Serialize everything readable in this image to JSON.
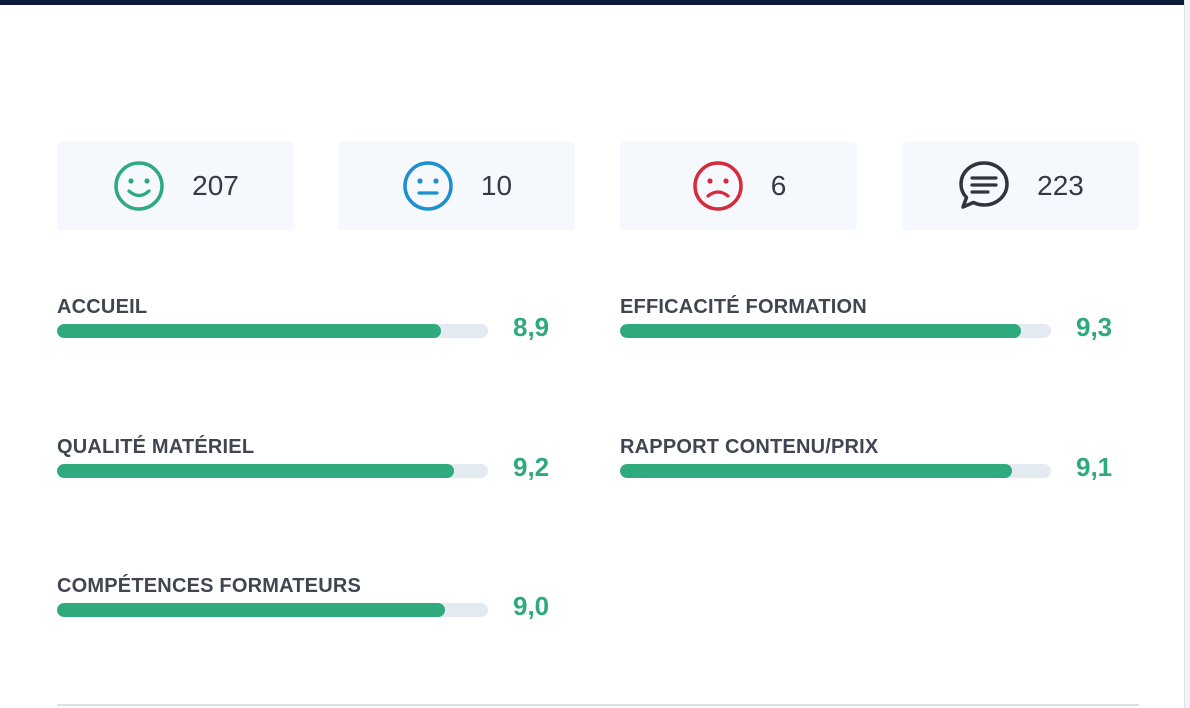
{
  "stats": [
    {
      "icon": "smiley-happy-icon",
      "count": "207",
      "color": "#2faa7c"
    },
    {
      "icon": "smiley-neutral-icon",
      "count": "10",
      "color": "#1e8fcf"
    },
    {
      "icon": "smiley-sad-icon",
      "count": "6",
      "color": "#d62a3d"
    },
    {
      "icon": "comment-icon",
      "count": "223",
      "color": "#2f3440"
    }
  ],
  "ratings": [
    {
      "label": "ACCUEIL",
      "score": "8,9",
      "value": 8.9
    },
    {
      "label": "EFFICACITÉ FORMATION",
      "score": "9,3",
      "value": 9.3
    },
    {
      "label": "QUALITÉ MATÉRIEL",
      "score": "9,2",
      "value": 9.2
    },
    {
      "label": "RAPPORT CONTENU/PRIX",
      "score": "9,1",
      "value": 9.1
    },
    {
      "label": "COMPÉTENCES FORMATEURS",
      "score": "9,0",
      "value": 9.0
    }
  ],
  "scale_max": 10,
  "colors": {
    "accent": "#2faa7c",
    "track": "#e3eaf2",
    "topbar": "#0d1a3a"
  }
}
